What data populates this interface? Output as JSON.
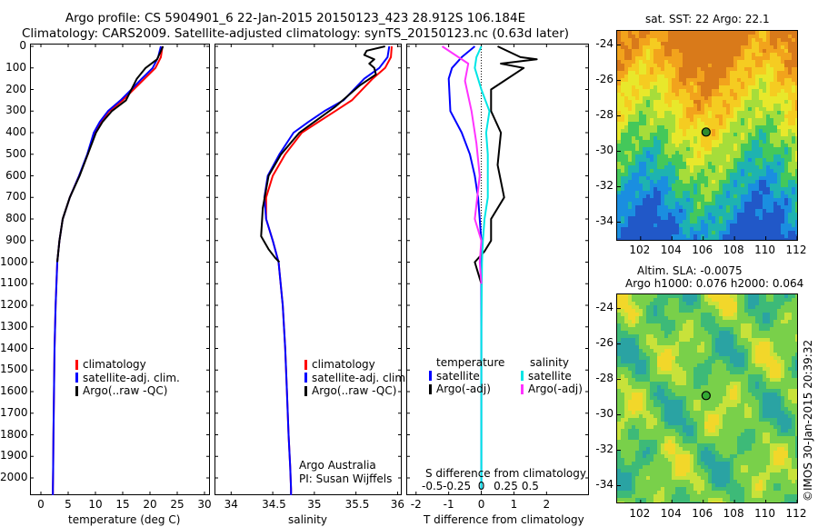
{
  "header": {
    "line1": "Argo profile: CS 5904901_6 22-Jan-2015 20150123_423 28.912S 106.184E",
    "line2": "Climatology: CARS2009. Satellite-adjusted climatology: synTS_20150123.nc (0.63d later)"
  },
  "colors": {
    "climatology": "#ff0000",
    "satellite": "#0000ff",
    "argo": "#000000",
    "sal_satellite": "#00e5e5",
    "sal_argo": "#ff33ff"
  },
  "depth_ticks": [
    "0",
    "100",
    "200",
    "300",
    "400",
    "500",
    "600",
    "700",
    "800",
    "900",
    "1000",
    "1100",
    "1200",
    "1300",
    "1400",
    "1500",
    "1600",
    "1700",
    "1800",
    "1900",
    "2000"
  ],
  "chart_data": [
    {
      "type": "line",
      "xlabel": "temperature (deg C)",
      "ylabel": "",
      "xlim": [
        -2,
        31
      ],
      "ylim": [
        2080,
        0
      ],
      "xticks": [
        "0",
        "5",
        "10",
        "15",
        "20",
        "25",
        "30"
      ],
      "legend": [
        "climatology",
        "satellite-adj. clim.",
        "Argo(..raw -QC)"
      ],
      "series": [
        {
          "name": "climatology",
          "x": [
            22.3,
            22.0,
            21.0,
            19.0,
            17.0,
            15.0,
            12.5,
            11.0,
            9.8,
            8.6,
            7.0,
            5.3,
            4.0,
            3.4,
            3.0,
            2.7,
            2.5,
            2.4,
            2.3,
            2.25,
            2.2,
            2.2
          ],
          "y": [
            0,
            50,
            100,
            150,
            200,
            250,
            300,
            350,
            400,
            500,
            600,
            700,
            800,
            900,
            1000,
            1200,
            1400,
            1600,
            1800,
            1950,
            2050,
            2080
          ]
        },
        {
          "name": "satellite-adj. clim.",
          "x": [
            22.0,
            21.5,
            20.5,
            18.5,
            16.6,
            14.6,
            12.3,
            10.8,
            9.7,
            8.5,
            7.0,
            5.3,
            4.0,
            3.4,
            3.0,
            2.7,
            2.5,
            2.4,
            2.3,
            2.25,
            2.2,
            2.2
          ],
          "y": [
            0,
            50,
            100,
            150,
            200,
            250,
            300,
            350,
            400,
            500,
            600,
            700,
            800,
            900,
            1000,
            1200,
            1400,
            1600,
            1800,
            1950,
            2050,
            2080
          ]
        },
        {
          "name": "Argo(..raw -QC)",
          "x": [
            22.4,
            21.3,
            19.2,
            17.6,
            15.6,
            13.0,
            11.3,
            10.1,
            8.6,
            7.1,
            5.3,
            4.0,
            3.4,
            3.0
          ],
          "y": [
            0,
            60,
            100,
            150,
            250,
            300,
            350,
            400,
            500,
            600,
            700,
            800,
            900,
            1000
          ]
        }
      ],
      "notes": []
    },
    {
      "type": "line",
      "xlabel": "salinity",
      "ylabel": "",
      "xlim": [
        33.8,
        36.05
      ],
      "ylim": [
        2080,
        0
      ],
      "xticks": [
        "34",
        "34.5",
        "35",
        "35.5",
        "36"
      ],
      "legend": [
        "climatology",
        "satellite-adj. clim.",
        "Argo(..raw -QC)"
      ],
      "series": [
        {
          "name": "climatology",
          "x": [
            35.93,
            35.92,
            35.85,
            35.7,
            35.45,
            35.25,
            35.05,
            34.85,
            34.65,
            34.5,
            34.42,
            34.42,
            34.5,
            34.57,
            34.62,
            34.65,
            34.67,
            34.69,
            34.71,
            34.72,
            34.72
          ],
          "y": [
            0,
            50,
            100,
            150,
            250,
            300,
            350,
            400,
            500,
            600,
            700,
            800,
            900,
            1000,
            1200,
            1400,
            1600,
            1800,
            1950,
            2050,
            2080
          ]
        },
        {
          "name": "satellite-adj. clim.",
          "x": [
            35.9,
            35.88,
            35.78,
            35.6,
            35.35,
            35.12,
            34.93,
            34.75,
            34.58,
            34.44,
            34.4,
            34.42,
            34.5,
            34.57,
            34.62,
            34.65,
            34.67,
            34.69,
            34.71,
            34.72,
            34.72
          ],
          "y": [
            0,
            50,
            100,
            150,
            250,
            300,
            350,
            400,
            500,
            600,
            700,
            800,
            900,
            1000,
            1200,
            1400,
            1600,
            1800,
            1950,
            2050,
            2080
          ]
        },
        {
          "name": "Argo(..raw -QC)",
          "x": [
            35.85,
            35.63,
            35.6,
            35.72,
            35.66,
            35.72,
            35.74,
            35.55,
            35.25,
            35.0,
            34.82,
            34.6,
            34.45,
            34.38,
            34.36,
            34.45,
            34.53,
            34.58
          ],
          "y": [
            0,
            20,
            40,
            60,
            80,
            100,
            130,
            180,
            280,
            350,
            400,
            500,
            600,
            750,
            880,
            940,
            980,
            1000
          ]
        }
      ],
      "notes": [
        "Argo Australia",
        "PI: Susan Wijffels"
      ]
    },
    {
      "type": "line",
      "xlabel": "T difference from climatology",
      "xlabel2": "S difference from climatology",
      "xlim": [
        -2.3,
        3.3
      ],
      "ylim": [
        2080,
        0
      ],
      "xticks": [
        "-2",
        "-1",
        "0",
        "1",
        "2"
      ],
      "xticks2": [
        "-0.5",
        "-0.25",
        "0",
        "0.25",
        "0.5"
      ],
      "legend_temperature": {
        "title": "temperature",
        "items": [
          "satellite",
          "Argo(-adj)"
        ]
      },
      "legend_salinity": {
        "title": "salinity",
        "items": [
          "satellite",
          "Argo(-adj)"
        ]
      },
      "series": [
        {
          "name": "temperature satellite",
          "x": [
            -0.2,
            -0.6,
            -0.9,
            -1.0,
            -0.95,
            -0.6,
            -0.35,
            -0.2,
            -0.1,
            -0.05,
            0.0,
            0.0,
            0.0,
            0.0,
            0.0
          ],
          "y": [
            0,
            50,
            100,
            150,
            300,
            400,
            500,
            600,
            700,
            800,
            900,
            1000,
            1300,
            1700,
            2050
          ]
        },
        {
          "name": "temperature Argo(-adj)",
          "x": [
            0.5,
            1.2,
            1.7,
            0.6,
            1.3,
            0.3,
            0.3,
            0.6,
            0.5,
            0.7,
            0.3,
            0.3,
            0.1,
            -0.2,
            -0.1,
            0.0
          ],
          "y": [
            0,
            50,
            60,
            80,
            100,
            200,
            300,
            400,
            550,
            700,
            800,
            900,
            950,
            1000,
            1050,
            1100
          ]
        },
        {
          "name": "salinity satellite",
          "x": [
            0.0,
            -0.15,
            -0.2,
            0.0,
            0.25,
            0.15,
            0.2,
            0.2,
            0.1,
            0.05,
            0.02,
            0.0,
            0.0,
            0.0
          ],
          "y": [
            0,
            50,
            100,
            200,
            300,
            400,
            500,
            700,
            800,
            900,
            1000,
            1300,
            1700,
            2050
          ]
        },
        {
          "name": "salinity Argo(-adj)",
          "x": [
            -1.2,
            -0.8,
            -0.4,
            -0.5,
            -0.3,
            -0.15,
            -0.05,
            -0.2,
            0.0,
            -0.05,
            0.0
          ],
          "y": [
            0,
            40,
            80,
            160,
            300,
            450,
            600,
            800,
            900,
            1000,
            1100
          ]
        }
      ],
      "notes": []
    }
  ],
  "maps": {
    "sst": {
      "title": "sat. SST: 22 Argo: 22.1",
      "yticks": [
        "-24",
        "-26",
        "-28",
        "-30",
        "-32",
        "-34"
      ],
      "xticks": [
        "102",
        "104",
        "106",
        "108",
        "110",
        "112"
      ],
      "marker": {
        "lon": 106.184,
        "lat": -28.912
      }
    },
    "sla": {
      "title_line1": "Altim. SLA: -0.0075",
      "title_line2": "Argo h1000: 0.076 h2000: 0.064",
      "yticks": [
        "-24",
        "-26",
        "-28",
        "-30",
        "-32",
        "-34"
      ],
      "xticks": [
        "102",
        "104",
        "106",
        "108",
        "110",
        "112"
      ],
      "marker": {
        "lon": 106.184,
        "lat": -28.912
      }
    }
  },
  "credit": "©IMOS 30-Jan-2015 20:39:32"
}
